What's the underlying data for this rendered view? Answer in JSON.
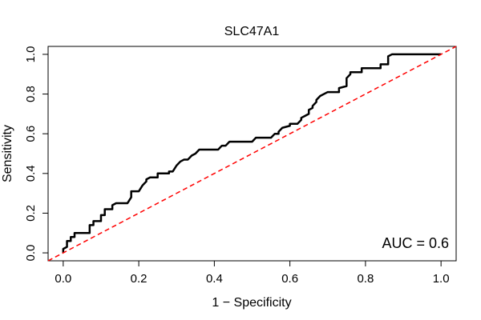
{
  "chart_data": {
    "type": "line",
    "title": "SLC47A1",
    "xlabel": "1 − Specificity",
    "ylabel": "Sensitivity",
    "xlim": [
      -0.04,
      1.04
    ],
    "ylim": [
      -0.04,
      1.04
    ],
    "xticks": [
      0.0,
      0.2,
      0.4,
      0.6,
      0.8,
      1.0
    ],
    "xtick_labels": [
      "0.0",
      "0.2",
      "0.4",
      "0.6",
      "0.8",
      "1.0"
    ],
    "yticks": [
      0.0,
      0.2,
      0.4,
      0.6,
      0.8,
      1.0
    ],
    "ytick_labels": [
      "0.0",
      "0.2",
      "0.4",
      "0.6",
      "0.8",
      "1.0"
    ],
    "grid": false,
    "annotation": "AUC = 0.6",
    "series": [
      {
        "color": "#000000",
        "style": "solid",
        "points": [
          [
            0.0,
            0.0
          ],
          [
            0.0,
            0.02
          ],
          [
            0.01,
            0.03
          ],
          [
            0.01,
            0.06
          ],
          [
            0.02,
            0.06
          ],
          [
            0.02,
            0.08
          ],
          [
            0.03,
            0.08
          ],
          [
            0.03,
            0.1
          ],
          [
            0.07,
            0.1
          ],
          [
            0.07,
            0.14
          ],
          [
            0.08,
            0.14
          ],
          [
            0.08,
            0.16
          ],
          [
            0.1,
            0.16
          ],
          [
            0.1,
            0.19
          ],
          [
            0.11,
            0.19
          ],
          [
            0.11,
            0.22
          ],
          [
            0.13,
            0.22
          ],
          [
            0.13,
            0.24
          ],
          [
            0.14,
            0.25
          ],
          [
            0.17,
            0.25
          ],
          [
            0.18,
            0.28
          ],
          [
            0.18,
            0.31
          ],
          [
            0.2,
            0.31
          ],
          [
            0.21,
            0.34
          ],
          [
            0.22,
            0.36
          ],
          [
            0.22,
            0.37
          ],
          [
            0.23,
            0.38
          ],
          [
            0.25,
            0.38
          ],
          [
            0.25,
            0.4
          ],
          [
            0.28,
            0.4
          ],
          [
            0.28,
            0.41
          ],
          [
            0.29,
            0.41
          ],
          [
            0.3,
            0.44
          ],
          [
            0.31,
            0.46
          ],
          [
            0.32,
            0.47
          ],
          [
            0.33,
            0.47
          ],
          [
            0.34,
            0.49
          ],
          [
            0.35,
            0.5
          ],
          [
            0.36,
            0.52
          ],
          [
            0.41,
            0.52
          ],
          [
            0.42,
            0.54
          ],
          [
            0.43,
            0.54
          ],
          [
            0.44,
            0.56
          ],
          [
            0.5,
            0.56
          ],
          [
            0.51,
            0.58
          ],
          [
            0.55,
            0.58
          ],
          [
            0.56,
            0.6
          ],
          [
            0.57,
            0.6
          ],
          [
            0.57,
            0.61
          ],
          [
            0.58,
            0.63
          ],
          [
            0.6,
            0.64
          ],
          [
            0.6,
            0.65
          ],
          [
            0.62,
            0.65
          ],
          [
            0.63,
            0.67
          ],
          [
            0.63,
            0.68
          ],
          [
            0.64,
            0.69
          ],
          [
            0.65,
            0.7
          ],
          [
            0.65,
            0.72
          ],
          [
            0.66,
            0.73
          ],
          [
            0.66,
            0.74
          ],
          [
            0.67,
            0.76
          ],
          [
            0.67,
            0.77
          ],
          [
            0.68,
            0.79
          ],
          [
            0.7,
            0.81
          ],
          [
            0.73,
            0.81
          ],
          [
            0.73,
            0.83
          ],
          [
            0.75,
            0.84
          ],
          [
            0.75,
            0.88
          ],
          [
            0.76,
            0.9
          ],
          [
            0.76,
            0.91
          ],
          [
            0.79,
            0.91
          ],
          [
            0.79,
            0.93
          ],
          [
            0.84,
            0.93
          ],
          [
            0.84,
            0.95
          ],
          [
            0.86,
            0.95
          ],
          [
            0.86,
            0.99
          ],
          [
            0.87,
            1.0
          ],
          [
            1.0,
            1.0
          ]
        ]
      },
      {
        "color": "#ff0000",
        "style": "dashed",
        "points": [
          [
            -0.04,
            -0.04
          ],
          [
            1.04,
            1.04
          ]
        ]
      }
    ]
  }
}
